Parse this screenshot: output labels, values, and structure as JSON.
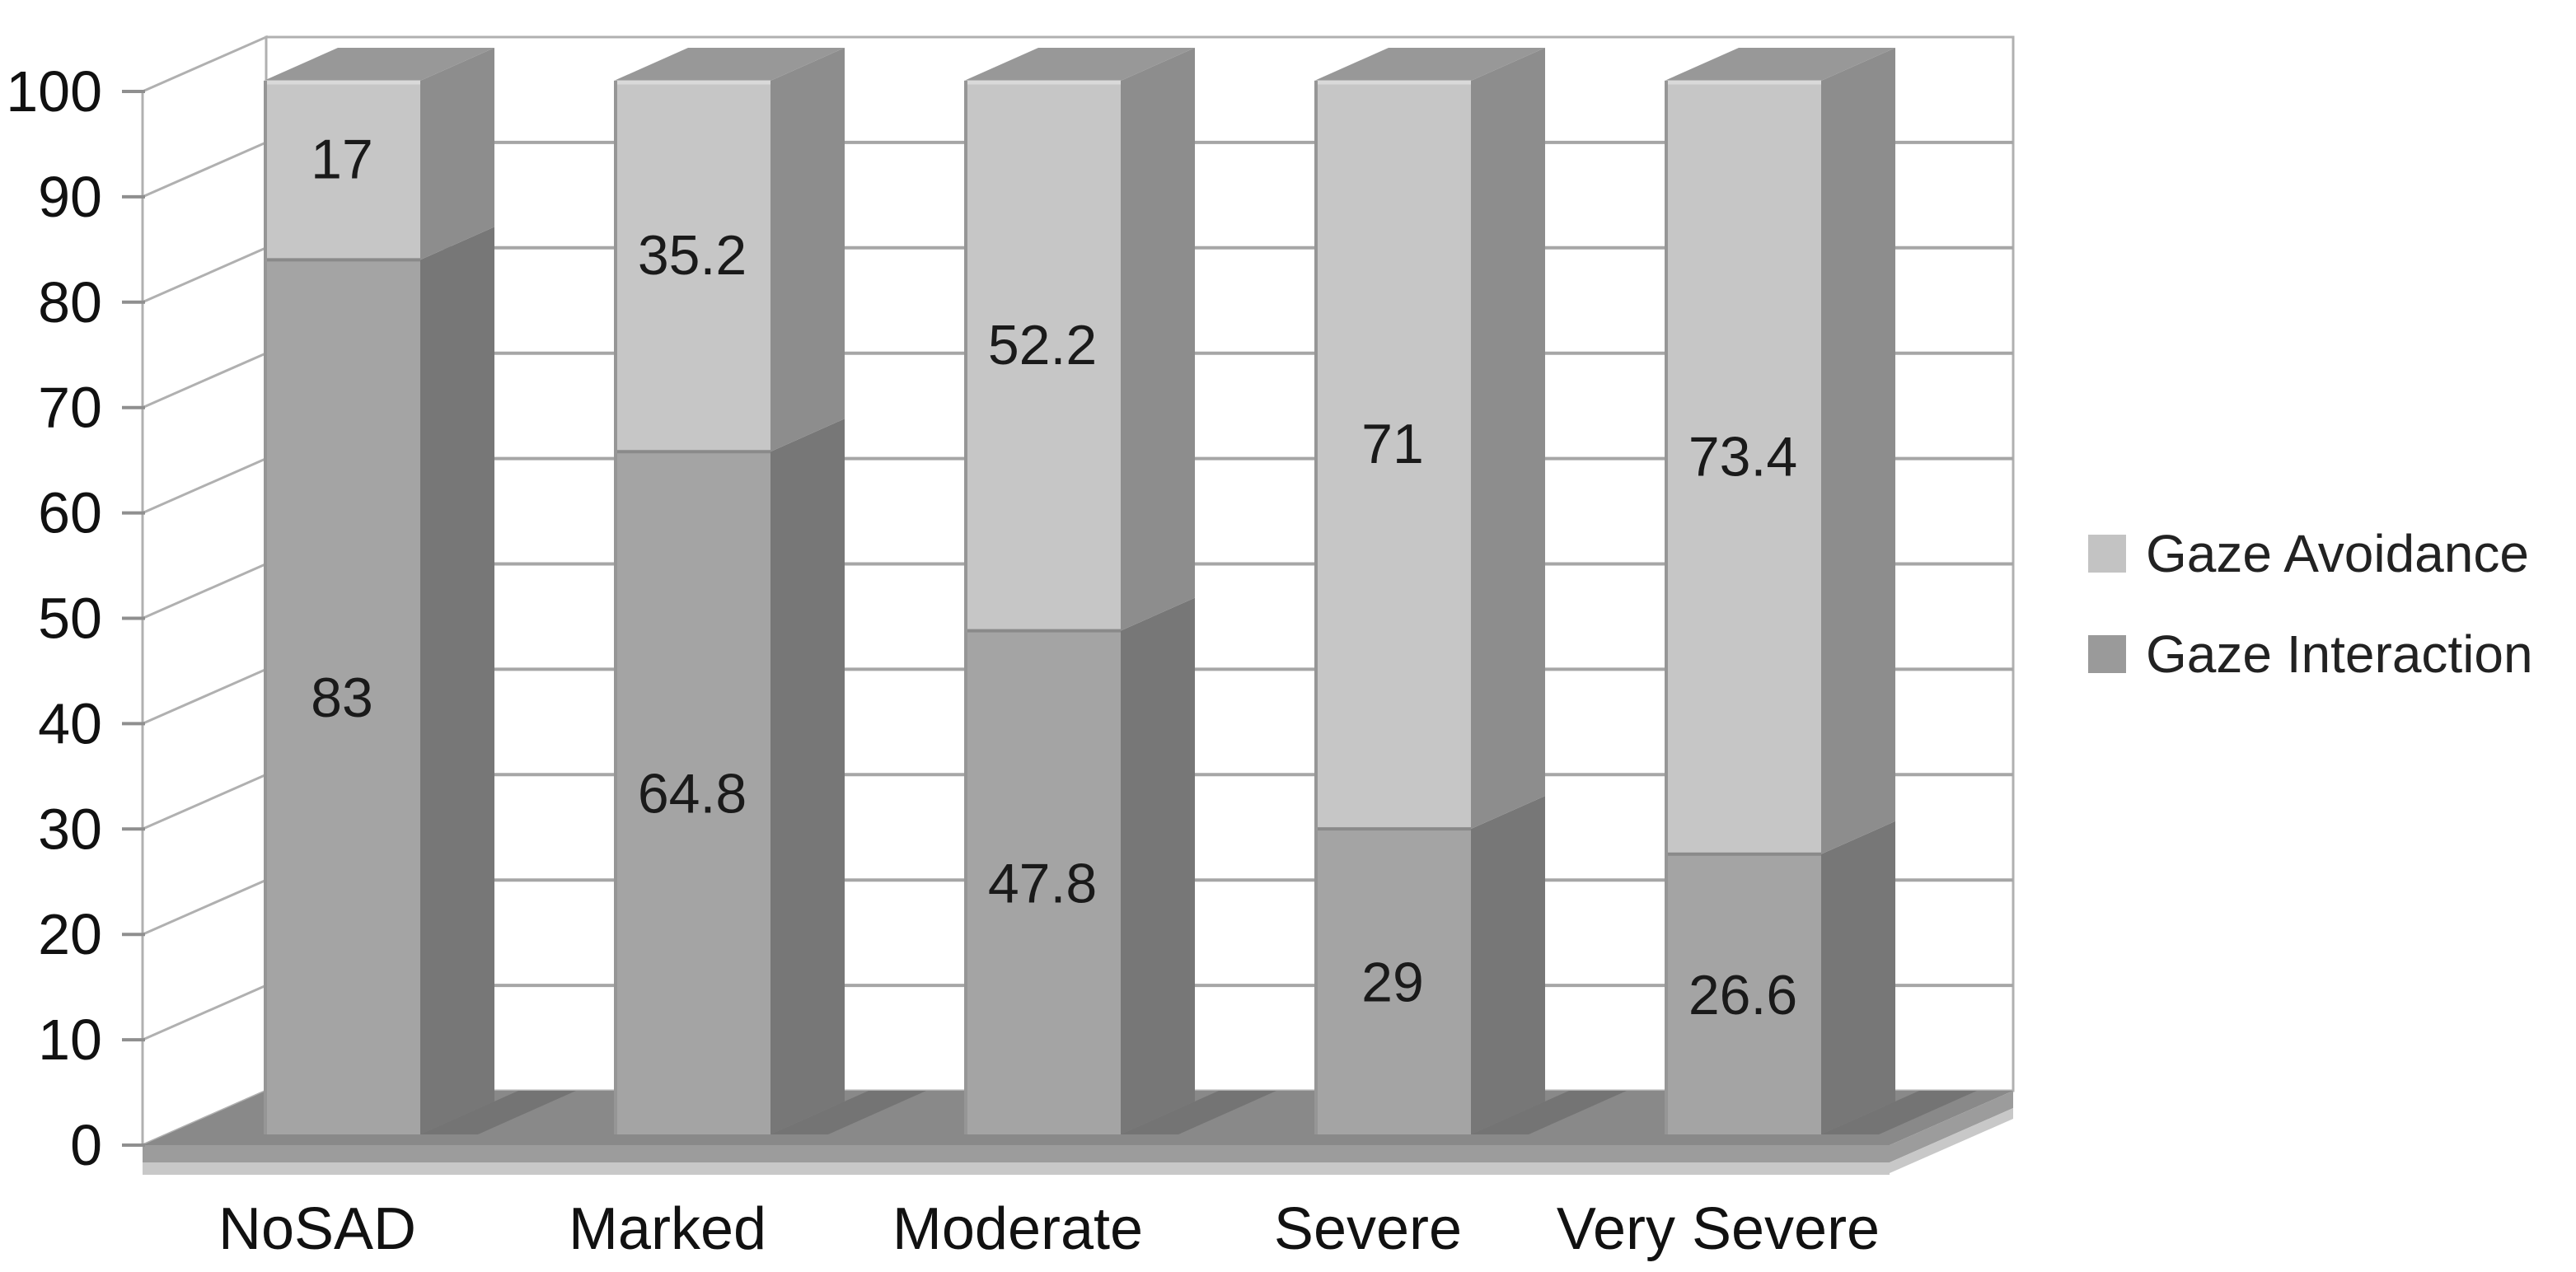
{
  "chart_data": {
    "type": "bar",
    "variant": "3d-stacked-column",
    "title": "",
    "xlabel": "",
    "ylabel": "",
    "background_color": "#ffffff",
    "categories": [
      "NoSAD",
      "Marked",
      "Moderate",
      "Severe",
      "Very Severe"
    ],
    "series": [
      {
        "name": "Gaze Interaction",
        "stack_position": "bottom",
        "values": [
          83,
          64.8,
          47.8,
          29,
          26.6
        ],
        "labels": [
          "83",
          "64.8",
          "47.8",
          "29",
          "26.6"
        ],
        "front_color": "#a4a4a4",
        "side_color": "#777777",
        "top_color": "#8a8a8a"
      },
      {
        "name": "Gaze Avoidance",
        "stack_position": "top",
        "values": [
          17,
          35.2,
          52.2,
          71,
          73.4
        ],
        "labels": [
          "17",
          "35.2",
          "52.2",
          "71",
          "73.4"
        ],
        "front_color": "#c6c6c6",
        "side_color": "#8d8d8d",
        "top_color": "#989898"
      }
    ],
    "stack_totals": [
      100,
      100,
      100,
      100,
      100
    ],
    "yaxis": {
      "min": 0,
      "max": 100,
      "step": 10,
      "tick_labels": [
        "0",
        "10",
        "20",
        "30",
        "40",
        "50",
        "60",
        "70",
        "80",
        "90",
        "100"
      ]
    },
    "grid": true,
    "label_color": "#1a1a1a",
    "axis_text_color": "#111111",
    "gridline_color": "#a6a6a6",
    "wall_border_color": "#b0b0b0",
    "floor_color": "#898989",
    "floor_lip_color": "#9c9c9c",
    "floor_lip_light_color": "#c8c8c8",
    "shadow_color": "#747474",
    "legend": {
      "position": "right",
      "items": [
        {
          "label": "Gaze Avoidance",
          "swatch_color": "#c3c3c3"
        },
        {
          "label": "Gaze Interaction",
          "swatch_color": "#9a9a9a"
        }
      ]
    }
  }
}
